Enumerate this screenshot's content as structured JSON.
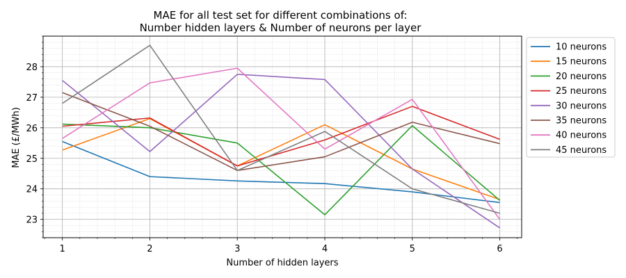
{
  "chart_data": {
    "type": "line",
    "title": [
      "MAE for all test set for different combinations of:",
      "Number hidden layers & Number of neurons per layer"
    ],
    "xlabel": "Number of hidden layers",
    "ylabel": "MAE (£/MWh)",
    "x": [
      1,
      2,
      3,
      4,
      5,
      6
    ],
    "xlim": [
      0.78,
      6.25
    ],
    "ylim": [
      22.4,
      29.0
    ],
    "xticks": [
      1,
      2,
      3,
      4,
      5,
      6
    ],
    "yticks": [
      23,
      24,
      25,
      26,
      27,
      28
    ],
    "grid": true,
    "legend_position": "outside-right",
    "series": [
      {
        "name": "10 neurons",
        "color": "#1f77b4",
        "values": [
          25.55,
          24.4,
          24.26,
          24.17,
          23.9,
          23.55
        ]
      },
      {
        "name": "15 neurons",
        "color": "#ff7f0e",
        "values": [
          25.27,
          26.3,
          24.75,
          26.1,
          24.65,
          23.65
        ]
      },
      {
        "name": "20 neurons",
        "color": "#2ca02c",
        "values": [
          26.12,
          26.0,
          25.5,
          23.15,
          26.07,
          23.62
        ]
      },
      {
        "name": "25 neurons",
        "color": "#d62728",
        "values": [
          26.05,
          26.32,
          24.75,
          25.6,
          26.7,
          25.62
        ]
      },
      {
        "name": "30 neurons",
        "color": "#9467bd",
        "values": [
          27.55,
          25.22,
          27.75,
          27.58,
          24.65,
          22.72
        ]
      },
      {
        "name": "35 neurons",
        "color": "#8c564b",
        "values": [
          27.15,
          26.05,
          24.6,
          25.05,
          26.18,
          25.48
        ]
      },
      {
        "name": "40 neurons",
        "color": "#e377c2",
        "values": [
          25.65,
          27.47,
          27.95,
          25.3,
          26.93,
          23.0
        ]
      },
      {
        "name": "45 neurons",
        "color": "#7f7f7f",
        "values": [
          26.8,
          28.7,
          24.6,
          25.88,
          24.0,
          23.2
        ]
      }
    ]
  }
}
